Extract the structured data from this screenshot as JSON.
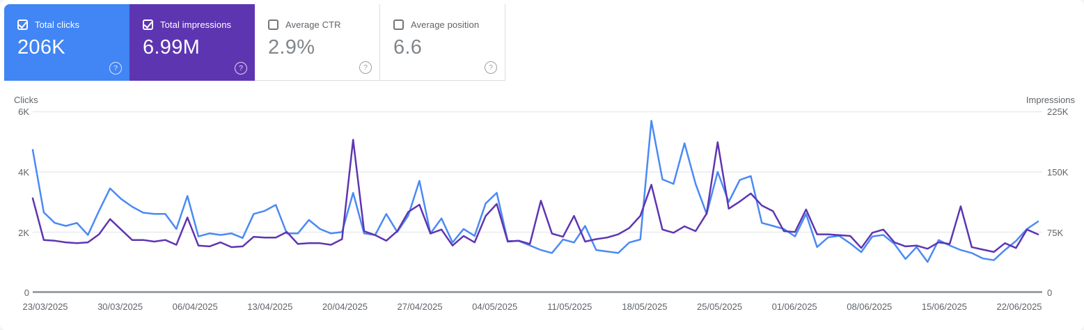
{
  "cards": [
    {
      "label": "Total clicks",
      "value": "206K",
      "checked": true,
      "bg": "#4285f4"
    },
    {
      "label": "Total impressions",
      "value": "6.99M",
      "checked": true,
      "bg": "#5e35b1"
    },
    {
      "label": "Average CTR",
      "value": "2.9%",
      "checked": false,
      "bg": "#ffffff"
    },
    {
      "label": "Average position",
      "value": "6.6",
      "checked": false,
      "bg": "#ffffff"
    }
  ],
  "icons": {
    "help": "?"
  },
  "chart_data": {
    "type": "line",
    "left_axis": {
      "title": "Clicks",
      "ticks": [
        "6K",
        "4K",
        "2K",
        "0"
      ],
      "max": 6000
    },
    "right_axis": {
      "title": "Impressions",
      "ticks": [
        "225K",
        "150K",
        "75K",
        "0"
      ],
      "max": 225000
    },
    "x_labels": [
      "23/03/2025",
      "30/03/2025",
      "06/04/2025",
      "13/04/2025",
      "20/04/2025",
      "27/04/2025",
      "04/05/2025",
      "11/05/2025",
      "18/05/2025",
      "25/05/2025",
      "01/06/2025",
      "08/06/2025",
      "15/06/2025",
      "22/06/2025"
    ],
    "grid": true,
    "legend_position": "none",
    "series": [
      {
        "name": "Total clicks",
        "axis": "left",
        "color": "#4a8af4",
        "values": [
          4730,
          2650,
          2300,
          2200,
          2300,
          1900,
          2700,
          3450,
          3100,
          2840,
          2640,
          2600,
          2600,
          2100,
          3200,
          1850,
          1950,
          1900,
          1950,
          1800,
          2600,
          2700,
          2900,
          1950,
          1950,
          2400,
          2100,
          1950,
          2000,
          3300,
          1950,
          1900,
          2600,
          2000,
          2550,
          3700,
          1950,
          2450,
          1650,
          2100,
          1870,
          2950,
          3300,
          1700,
          1700,
          1550,
          1400,
          1300,
          1750,
          1650,
          2200,
          1400,
          1350,
          1300,
          1650,
          1750,
          5700,
          3750,
          3600,
          4950,
          3600,
          2600,
          4000,
          3000,
          3730,
          3860,
          2300,
          2200,
          2100,
          1850,
          2600,
          1500,
          1820,
          1870,
          1620,
          1330,
          1850,
          1900,
          1600,
          1100,
          1500,
          1000,
          1730,
          1550,
          1400,
          1300,
          1120,
          1060,
          1400,
          1700,
          2100,
          2350
        ]
      },
      {
        "name": "Total impressions",
        "axis": "right",
        "color": "#5e35b1",
        "values": [
          117000,
          65000,
          64000,
          62000,
          61000,
          62000,
          72000,
          91000,
          78000,
          65000,
          65000,
          63000,
          65000,
          59000,
          93000,
          58000,
          57000,
          62000,
          56000,
          57000,
          69000,
          68000,
          68000,
          75000,
          60000,
          61000,
          61000,
          59000,
          66000,
          190000,
          76000,
          71000,
          64000,
          76000,
          100000,
          109000,
          73000,
          78000,
          58000,
          70000,
          62000,
          95000,
          110000,
          63000,
          64000,
          60000,
          114000,
          73000,
          69000,
          95000,
          63000,
          66000,
          68000,
          72000,
          80000,
          95000,
          134000,
          78000,
          74000,
          82000,
          76000,
          98000,
          187000,
          104000,
          113000,
          123000,
          108000,
          101000,
          76000,
          75000,
          103000,
          72000,
          72000,
          71000,
          70000,
          55000,
          74000,
          78000,
          62000,
          57000,
          58000,
          54000,
          62000,
          60000,
          107000,
          56000,
          53000,
          50000,
          61000,
          55000,
          78000,
          72000
        ]
      }
    ]
  }
}
